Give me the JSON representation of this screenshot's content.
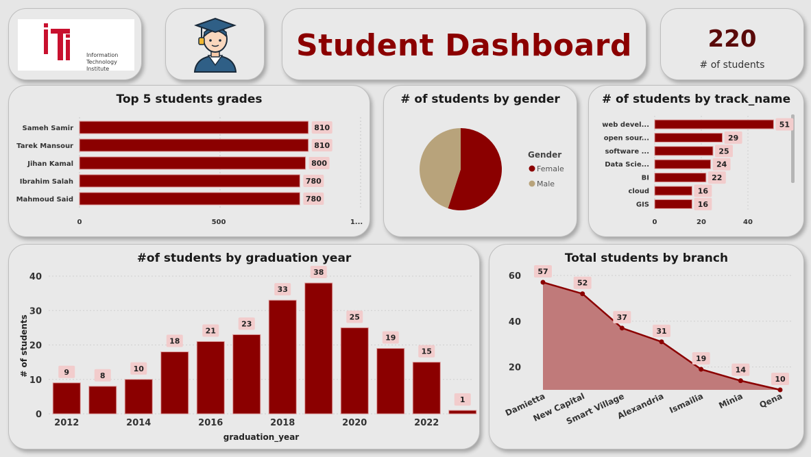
{
  "header": {
    "logo": {
      "icon": "iti-logo",
      "lines": [
        "Information",
        "Technology",
        "Institute"
      ]
    },
    "avatar_icon": "graduate-icon",
    "title": "Student Dashboard",
    "kpi": {
      "value": "220",
      "label": "# of  students"
    }
  },
  "colors": {
    "primary": "#8b0000",
    "male": "#b8a37b",
    "label_bg": "#f2cccc",
    "area": "#c07a7a"
  },
  "chart_data": [
    {
      "type": "bar",
      "orientation": "horizontal",
      "title": "Top 5 students grades",
      "categories": [
        "Sameh Samir",
        "Tarek Mansour",
        "Jihan Kamal",
        "Ibrahim Salah",
        "Mahmoud Said"
      ],
      "values": [
        810,
        810,
        800,
        780,
        780
      ],
      "value_labels": [
        "810",
        "810",
        "800",
        "780",
        "780"
      ],
      "ticks": [
        "0",
        "500",
        "1..."
      ],
      "xlim": [
        0,
        1000
      ]
    },
    {
      "type": "pie",
      "title": "# of students by gender",
      "legend_title": "Gender",
      "legend_position": "right",
      "labels": [
        "Female",
        "Male"
      ],
      "values": [
        0.55,
        0.45
      ]
    },
    {
      "type": "bar",
      "orientation": "horizontal",
      "title": "# of students by track_name",
      "categories": [
        "web devel...",
        "open sour...",
        "software ...",
        "Data Scie...",
        "BI",
        "cloud",
        "GIS"
      ],
      "values": [
        51,
        29,
        25,
        24,
        22,
        16,
        16
      ],
      "value_labels": [
        "51",
        "29",
        "25",
        "24",
        "22",
        "16",
        "16"
      ],
      "ticks": [
        "0",
        "20",
        "40"
      ],
      "xlim": [
        0,
        55
      ]
    },
    {
      "type": "bar",
      "title": "#of students by graduation year",
      "xlabel": "graduation_year",
      "ylabel": "# of students",
      "categories": [
        "2012",
        "2013",
        "2014",
        "2015",
        "2016",
        "2017",
        "2018",
        "2019",
        "2020",
        "2021",
        "2022",
        "2023"
      ],
      "values": [
        9,
        8,
        10,
        18,
        21,
        23,
        33,
        38,
        25,
        19,
        15,
        1
      ],
      "value_labels": [
        "9",
        "8",
        "10",
        "18",
        "21",
        "23",
        "33",
        "38",
        "25",
        "19",
        "15",
        "1"
      ],
      "x_ticks": [
        "2012",
        "2014",
        "2016",
        "2018",
        "2020",
        "2022"
      ],
      "y_ticks": [
        "0",
        "10",
        "20",
        "30",
        "40"
      ],
      "ylim": [
        0,
        40
      ],
      "grid": true
    },
    {
      "type": "area",
      "title": "Total students by branch",
      "categories": [
        "Damietta",
        "New Capital",
        "Smart Village",
        "Alexandria",
        "Ismailia",
        "Minia",
        "Qena"
      ],
      "values": [
        57,
        52,
        37,
        31,
        19,
        14,
        10
      ],
      "value_labels": [
        "57",
        "52",
        "37",
        "31",
        "19",
        "14",
        "10"
      ],
      "y_ticks": [
        "20",
        "40",
        "60"
      ],
      "ylim": [
        10,
        60
      ],
      "grid": true
    }
  ]
}
